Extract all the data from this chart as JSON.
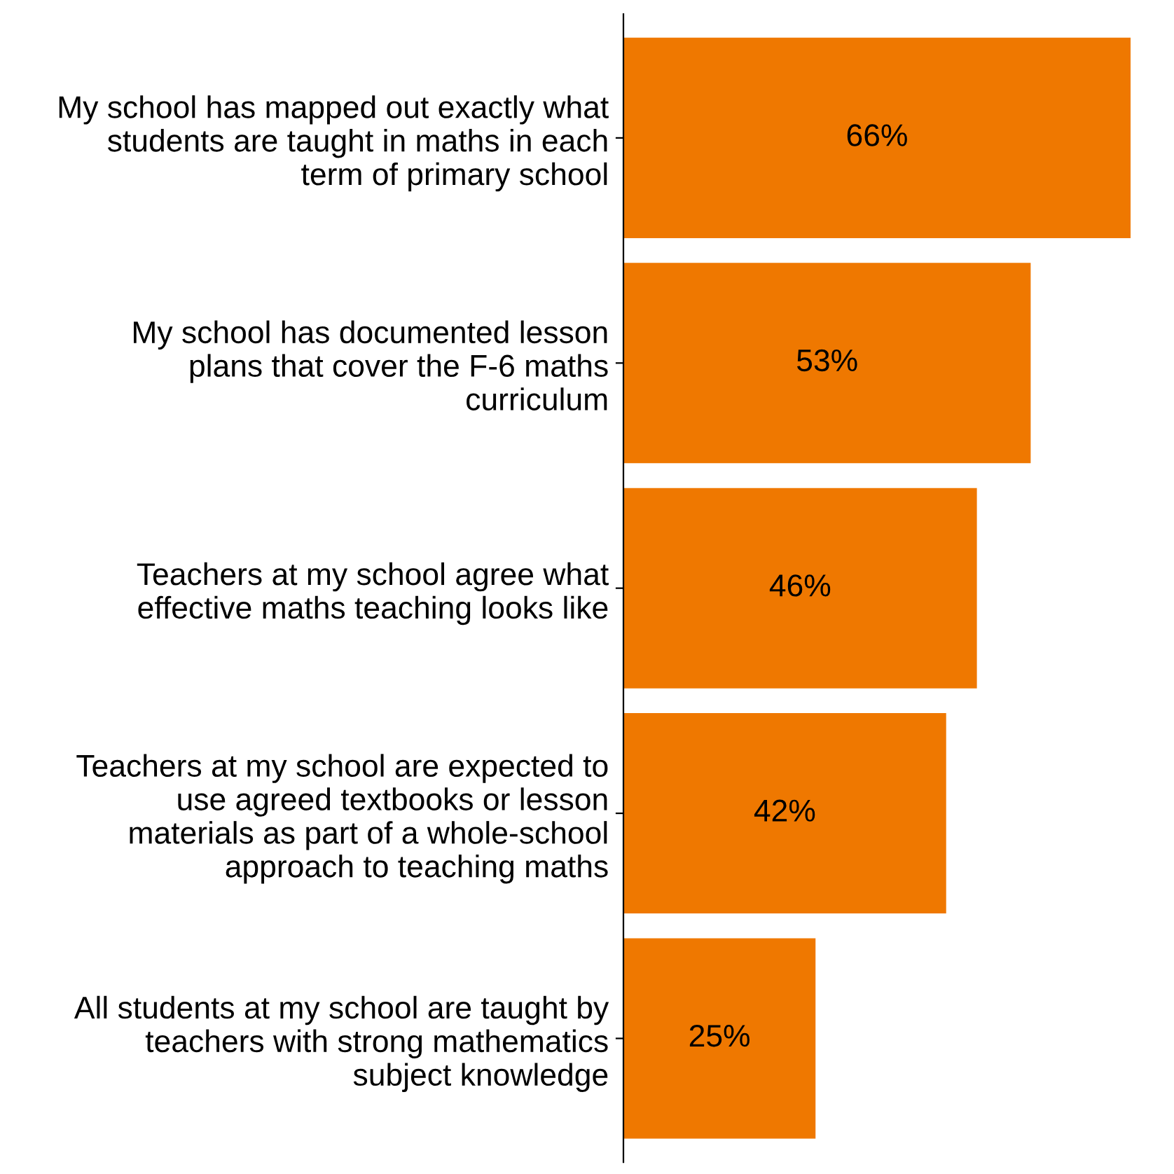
{
  "chart_data": {
    "type": "bar",
    "orientation": "horizontal",
    "categories": [
      "My school has mapped out exactly what\nstudents are taught in maths in each\nterm of primary school",
      "My school has documented lesson\nplans that cover the F-6 maths\ncurriculum",
      "Teachers at my school agree what\neffective maths teaching looks like",
      "Teachers at my school are expected to\nuse agreed textbooks or lesson\nmaterials as part of a whole-school\napproach to teaching maths",
      "All students at my school are taught by\nteachers with strong mathematics\nsubject knowledge"
    ],
    "values": [
      66,
      53,
      46,
      42,
      25
    ],
    "value_labels": [
      "66%",
      "53%",
      "46%",
      "42%",
      "25%"
    ],
    "color": "#ef7800",
    "tick_labels": "y",
    "grid": false,
    "legend": false
  }
}
